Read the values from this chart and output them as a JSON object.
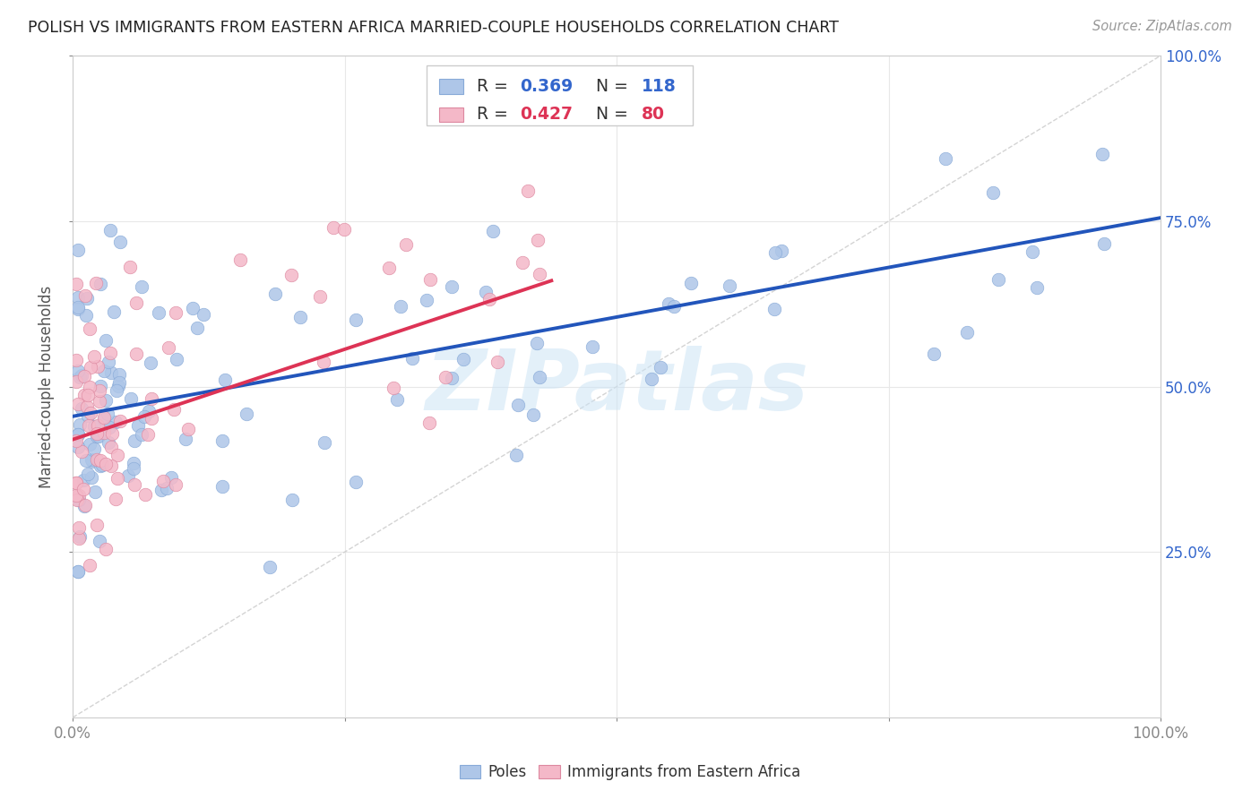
{
  "title": "POLISH VS IMMIGRANTS FROM EASTERN AFRICA MARRIED-COUPLE HOUSEHOLDS CORRELATION CHART",
  "source": "Source: ZipAtlas.com",
  "ylabel": "Married-couple Households",
  "watermark": "ZIPatlas",
  "legend_blue_r": "0.369",
  "legend_blue_n": "118",
  "legend_pink_r": "0.427",
  "legend_pink_n": "80",
  "blue_color": "#aec6e8",
  "pink_color": "#f4b8c8",
  "trend_blue": "#2255bb",
  "trend_pink": "#dd3355",
  "trend_diag_color": "#cccccc",
  "xlim": [
    0,
    1
  ],
  "ylim": [
    0,
    1
  ],
  "background_color": "#ffffff",
  "grid_color": "#e8e8e8",
  "blue_trend": [
    0.0,
    1.0,
    0.455,
    0.755
  ],
  "pink_trend": [
    0.0,
    0.44,
    0.42,
    0.66
  ]
}
